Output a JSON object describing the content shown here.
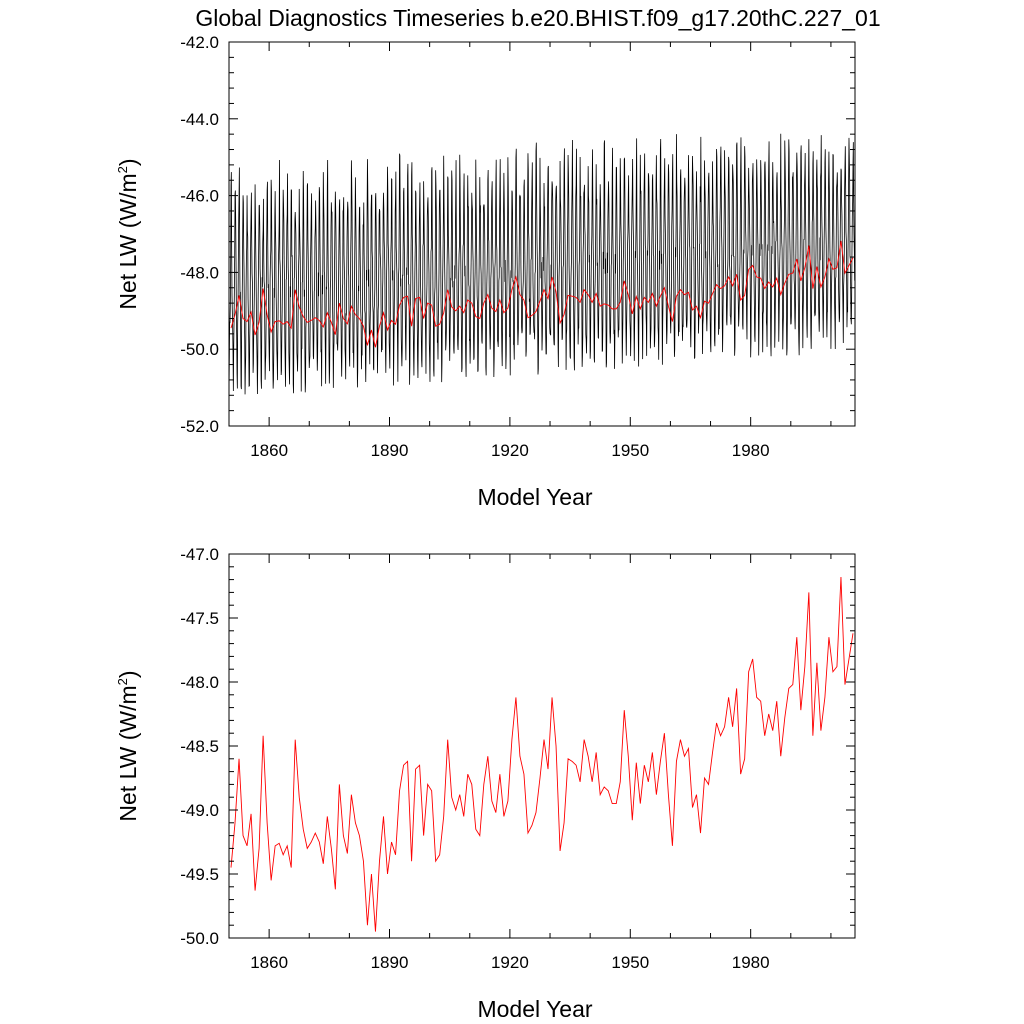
{
  "title": "Global Diagnostics Timeseries b.e20.BHIST.f09_g17.20thC.227_01",
  "colors": {
    "monthly": "#000000",
    "annual": "#ff0000",
    "axis": "#000000"
  },
  "chart_data": [
    {
      "type": "line",
      "xlabel": "Model Year",
      "ylabel_main": "Net LW (W/m",
      "ylabel_sup": "2",
      "ylabel_close": ")",
      "xlim": [
        1850,
        2006
      ],
      "ylim": [
        -52.0,
        -42.0
      ],
      "xticks": [
        1860,
        1890,
        1920,
        1950,
        1980
      ],
      "xtick_labels": [
        "1860",
        "1890",
        "1920",
        "1950",
        "1980"
      ],
      "yticks": [
        -42.0,
        -44.0,
        -46.0,
        -48.0,
        -50.0,
        -52.0
      ],
      "ytick_labels": [
        "-42.0",
        "-44.0",
        "-46.0",
        "-48.0",
        "-50.0",
        "-52.0"
      ],
      "series": [
        {
          "name": "monthly",
          "color": "#000000",
          "kind": "monthly",
          "start_year": 1850,
          "end_year": 2005,
          "summer_peak_start": -46.2,
          "summer_peak_end": -45.0,
          "winter_trough_start": -50.8,
          "winter_trough_end": -49.6
        },
        {
          "name": "annual",
          "color": "#ff0000",
          "kind": "annual",
          "ref": "annual_mean"
        }
      ]
    },
    {
      "type": "line",
      "xlabel": "Model Year",
      "ylabel_main": "Net LW (W/m",
      "ylabel_sup": "2",
      "ylabel_close": ")",
      "xlim": [
        1850,
        2006
      ],
      "ylim": [
        -50.0,
        -47.0
      ],
      "xticks": [
        1860,
        1890,
        1920,
        1950,
        1980
      ],
      "xtick_labels": [
        "1860",
        "1890",
        "1920",
        "1950",
        "1980"
      ],
      "yticks": [
        -47.0,
        -47.5,
        -48.0,
        -48.5,
        -49.0,
        -49.5,
        -50.0
      ],
      "ytick_labels": [
        "-47.0",
        "-47.5",
        "-48.0",
        "-48.5",
        "-49.0",
        "-49.5",
        "-50.0"
      ],
      "series": [
        {
          "name": "annual",
          "color": "#ff0000",
          "kind": "annual",
          "ref": "annual_mean"
        }
      ]
    }
  ],
  "annual_mean": {
    "years": [
      1850,
      1851,
      1852,
      1853,
      1854,
      1855,
      1856,
      1857,
      1858,
      1859,
      1860,
      1861,
      1862,
      1863,
      1864,
      1865,
      1866,
      1867,
      1868,
      1869,
      1870,
      1871,
      1872,
      1873,
      1874,
      1875,
      1876,
      1877,
      1878,
      1879,
      1880,
      1881,
      1882,
      1883,
      1884,
      1885,
      1886,
      1887,
      1888,
      1889,
      1890,
      1891,
      1892,
      1893,
      1894,
      1895,
      1896,
      1897,
      1898,
      1899,
      1900,
      1901,
      1902,
      1903,
      1904,
      1905,
      1906,
      1907,
      1908,
      1909,
      1910,
      1911,
      1912,
      1913,
      1914,
      1915,
      1916,
      1917,
      1918,
      1919,
      1920,
      1921,
      1922,
      1923,
      1924,
      1925,
      1926,
      1927,
      1928,
      1929,
      1930,
      1931,
      1932,
      1933,
      1934,
      1935,
      1936,
      1937,
      1938,
      1939,
      1940,
      1941,
      1942,
      1943,
      1944,
      1945,
      1946,
      1947,
      1948,
      1949,
      1950,
      1951,
      1952,
      1953,
      1954,
      1955,
      1956,
      1957,
      1958,
      1959,
      1960,
      1961,
      1962,
      1963,
      1964,
      1965,
      1966,
      1967,
      1968,
      1969,
      1970,
      1971,
      1972,
      1973,
      1974,
      1975,
      1976,
      1977,
      1978,
      1979,
      1980,
      1981,
      1982,
      1983,
      1984,
      1985,
      1986,
      1987,
      1988,
      1989,
      1990,
      1991,
      1992,
      1993,
      1994,
      1995,
      1996,
      1997,
      1998,
      1999,
      2000,
      2001,
      2002,
      2003,
      2004,
      2005
    ],
    "values": [
      -49.45,
      -49.1,
      -48.6,
      -49.2,
      -49.28,
      -49.03,
      -49.63,
      -49.3,
      -48.42,
      -49.1,
      -49.55,
      -49.28,
      -49.26,
      -49.35,
      -49.28,
      -49.45,
      -48.45,
      -48.9,
      -49.15,
      -49.3,
      -49.25,
      -49.18,
      -49.25,
      -49.42,
      -49.05,
      -49.3,
      -49.62,
      -48.8,
      -49.2,
      -49.34,
      -48.88,
      -49.1,
      -49.2,
      -49.4,
      -49.9,
      -49.5,
      -49.95,
      -49.4,
      -49.05,
      -49.5,
      -49.25,
      -49.35,
      -48.85,
      -48.65,
      -48.62,
      -49.4,
      -48.68,
      -48.65,
      -49.2,
      -48.8,
      -48.85,
      -49.4,
      -49.35,
      -49.05,
      -48.45,
      -48.9,
      -49.0,
      -48.88,
      -49.05,
      -48.72,
      -48.8,
      -49.15,
      -49.2,
      -48.8,
      -48.58,
      -48.93,
      -49.02,
      -48.72,
      -49.05,
      -48.93,
      -48.45,
      -48.12,
      -48.58,
      -48.72,
      -49.18,
      -49.12,
      -49.02,
      -48.75,
      -48.45,
      -48.68,
      -48.12,
      -48.5,
      -49.32,
      -49.1,
      -48.6,
      -48.62,
      -48.65,
      -48.78,
      -48.45,
      -48.58,
      -48.78,
      -48.55,
      -48.88,
      -48.82,
      -48.85,
      -48.95,
      -48.95,
      -48.78,
      -48.22,
      -48.58,
      -49.08,
      -48.63,
      -48.95,
      -48.65,
      -48.78,
      -48.55,
      -48.88,
      -48.62,
      -48.4,
      -48.88,
      -49.28,
      -48.62,
      -48.45,
      -48.58,
      -48.52,
      -48.98,
      -48.88,
      -49.18,
      -48.75,
      -48.8,
      -48.55,
      -48.32,
      -48.42,
      -48.35,
      -48.12,
      -48.35,
      -48.05,
      -48.72,
      -48.6,
      -47.92,
      -47.82,
      -48.12,
      -48.15,
      -48.42,
      -48.25,
      -48.38,
      -48.15,
      -48.58,
      -48.28,
      -48.05,
      -48.02,
      -47.65,
      -48.22,
      -47.88,
      -47.3,
      -48.42,
      -47.85,
      -48.38,
      -48.12,
      -47.65,
      -47.92,
      -47.88,
      -47.18,
      -48.02,
      -47.82,
      -47.62
    ]
  }
}
